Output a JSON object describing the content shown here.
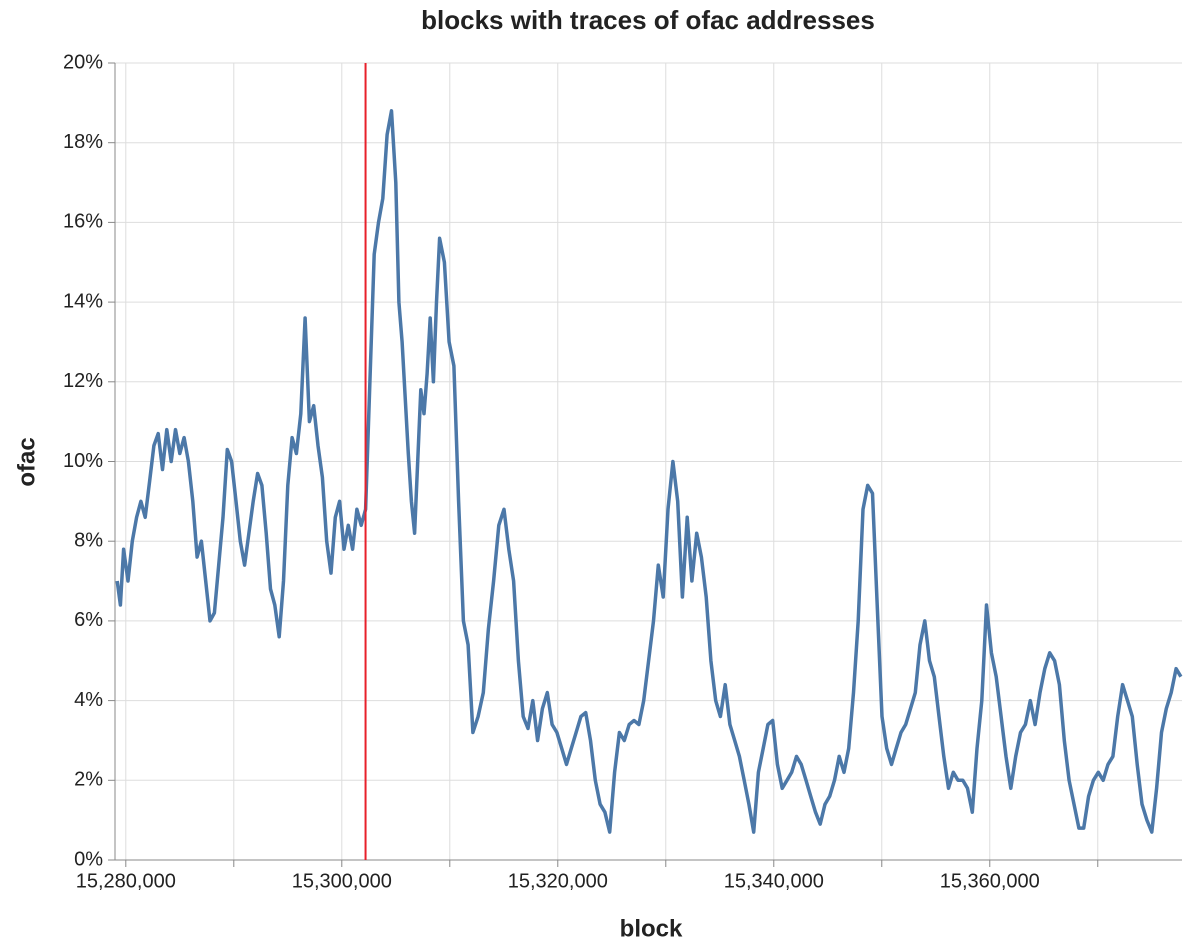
{
  "chart_data": {
    "type": "line",
    "title": "blocks with traces of ofac addresses",
    "x_label": "block",
    "y_label": "ofac",
    "color": "#4c78a8",
    "grid": true,
    "xlim": [
      15279000,
      15377800
    ],
    "ylim": [
      0,
      20
    ],
    "xticks": [
      {
        "value": 15280000,
        "label": "15,280,000"
      },
      {
        "value": 15290000,
        "label": null
      },
      {
        "value": 15300000,
        "label": "15,300,000"
      },
      {
        "value": 15310000,
        "label": null
      },
      {
        "value": 15320000,
        "label": "15,320,000"
      },
      {
        "value": 15330000,
        "label": null
      },
      {
        "value": 15340000,
        "label": "15,340,000"
      },
      {
        "value": 15350000,
        "label": null
      },
      {
        "value": 15360000,
        "label": "15,360,000"
      },
      {
        "value": 15370000,
        "label": null
      }
    ],
    "yticks": [
      {
        "value": 0,
        "label": "0%"
      },
      {
        "value": 2,
        "label": "2%"
      },
      {
        "value": 4,
        "label": "4%"
      },
      {
        "value": 6,
        "label": "6%"
      },
      {
        "value": 8,
        "label": "8%"
      },
      {
        "value": 10,
        "label": "10%"
      },
      {
        "value": 12,
        "label": "12%"
      },
      {
        "value": 14,
        "label": "14%"
      },
      {
        "value": 16,
        "label": "16%"
      },
      {
        "value": 18,
        "label": "18%"
      },
      {
        "value": 20,
        "label": "20%"
      }
    ],
    "vline": {
      "x": 15302200,
      "color": "#e8202a"
    },
    "x": [
      15279200,
      15279500,
      15279800,
      15280200,
      15280600,
      15281000,
      15281400,
      15281800,
      15282200,
      15282600,
      15283000,
      15283400,
      15283800,
      15284200,
      15284600,
      15285000,
      15285400,
      15285800,
      15286200,
      15286600,
      15287000,
      15287400,
      15287800,
      15288200,
      15288600,
      15289000,
      15289400,
      15289800,
      15290200,
      15290600,
      15291000,
      15291400,
      15291800,
      15292200,
      15292600,
      15293000,
      15293400,
      15293800,
      15294200,
      15294600,
      15295000,
      15295400,
      15295800,
      15296200,
      15296600,
      15297000,
      15297400,
      15297800,
      15298200,
      15298600,
      15299000,
      15299400,
      15299800,
      15300200,
      15300600,
      15301000,
      15301400,
      15301800,
      15302200,
      15302600,
      15303000,
      15303400,
      15303800,
      15304200,
      15304600,
      15305000,
      15305290,
      15305580,
      15305870,
      15306160,
      15306450,
      15306740,
      15307030,
      15307320,
      15307610,
      15307900,
      15308190,
      15308480,
      15308770,
      15309060,
      15309500,
      15309940,
      15310380,
      15310820,
      15311260,
      15311700,
      15312140,
      15312620,
      15313100,
      15313580,
      15314060,
      15314540,
      15315020,
      15315465,
      15315910,
      15316355,
      15316800,
      15317245,
      15317690,
      15318135,
      15318580,
      15319025,
      15319470,
      15319915,
      15320360,
      15320805,
      15321250,
      15321695,
      15322140,
      15322585,
      15323030,
      15323475,
      15323920,
      15324365,
      15324810,
      15325260,
      15325710,
      15326160,
      15326610,
      15327060,
      15327510,
      15327960,
      15328410,
      15328860,
      15329310,
      15329760,
      15330210,
      15330660,
      15331100,
      15331540,
      15331980,
      15332420,
      15332860,
      15333300,
      15333740,
      15334180,
      15334620,
      15335060,
      15335500,
      15335940,
      15336380,
      15336820,
      15337260,
      15337700,
      15338140,
      15338580,
      15339020,
      15339460,
      15339900,
      15340340,
      15340780,
      15341220,
      15341660,
      15342100,
      15342540,
      15342980,
      15343420,
      15343860,
      15344300,
      15344740,
      15345180,
      15345620,
      15346060,
      15346500,
      15346940,
      15347380,
      15347820,
      15348260,
      15348700,
      15349140,
      15349580,
      15350020,
      15350460,
      15350900,
      15351340,
      15351780,
      15352220,
      15352660,
      15353100,
      15353540,
      15353980,
      15354420,
      15354860,
      15355300,
      15355740,
      15356180,
      15356620,
      15357060,
      15357500,
      15357940,
      15358380,
      15358820,
      15359260,
      15359700,
      15360150,
      15360600,
      15361050,
      15361500,
      15361950,
      15362400,
      15362850,
      15363300,
      15363750,
      15364200,
      15364650,
      15365100,
      15365550,
      15366000,
      15366450,
      15366900,
      15367350,
      15367800,
      15368250,
      15368700,
      15369150,
      15369600,
      15370050,
      15370500,
      15370950,
      15371400,
      15371850,
      15372300,
      15372750,
      15373200,
      15373650,
      15374100,
      15374550,
      15375000,
      15375450,
      15375900,
      15376350,
      15376800,
      15377250,
      15377700
    ],
    "values": [
      7.0,
      6.4,
      7.8,
      7.0,
      8.0,
      8.6,
      9.0,
      8.6,
      9.5,
      10.4,
      10.7,
      9.8,
      10.8,
      10.0,
      10.8,
      10.2,
      10.6,
      10.0,
      9.0,
      7.6,
      8.0,
      7.0,
      6.0,
      6.2,
      7.4,
      8.6,
      10.3,
      10.0,
      9.0,
      8.0,
      7.4,
      8.2,
      9.0,
      9.7,
      9.4,
      8.2,
      6.8,
      6.4,
      5.6,
      7.0,
      9.4,
      10.6,
      10.2,
      11.2,
      13.6,
      11.0,
      11.4,
      10.4,
      9.6,
      8.0,
      7.2,
      8.6,
      9.0,
      7.8,
      8.4,
      7.8,
      8.8,
      8.4,
      8.8,
      12.0,
      15.2,
      16.0,
      16.6,
      18.2,
      18.8,
      17.0,
      14.0,
      13.0,
      11.6,
      10.2,
      9.0,
      8.2,
      10.0,
      11.8,
      11.2,
      12.2,
      13.6,
      12.0,
      14.0,
      15.6,
      15.0,
      13.0,
      12.4,
      9.0,
      6.0,
      5.4,
      3.2,
      3.6,
      4.2,
      5.8,
      7.0,
      8.4,
      8.8,
      7.8,
      7.0,
      5.0,
      3.6,
      3.3,
      4.0,
      3.0,
      3.8,
      4.2,
      3.4,
      3.2,
      2.8,
      2.4,
      2.8,
      3.2,
      3.6,
      3.7,
      3.0,
      2.0,
      1.4,
      1.2,
      0.7,
      2.2,
      3.2,
      3.0,
      3.4,
      3.5,
      3.4,
      4.0,
      5.0,
      6.0,
      7.4,
      6.6,
      8.8,
      10.0,
      9.0,
      6.6,
      8.6,
      7.0,
      8.2,
      7.6,
      6.6,
      5.0,
      4.0,
      3.6,
      4.4,
      3.4,
      3.0,
      2.6,
      2.0,
      1.4,
      0.7,
      2.2,
      2.8,
      3.4,
      3.5,
      2.4,
      1.8,
      2.0,
      2.2,
      2.6,
      2.4,
      2.0,
      1.6,
      1.2,
      0.9,
      1.4,
      1.6,
      2.0,
      2.6,
      2.2,
      2.8,
      4.2,
      6.0,
      8.8,
      9.4,
      9.2,
      6.4,
      3.6,
      2.8,
      2.4,
      2.8,
      3.2,
      3.4,
      3.8,
      4.2,
      5.4,
      6.0,
      5.0,
      4.6,
      3.6,
      2.6,
      1.8,
      2.2,
      2.0,
      2.0,
      1.8,
      1.2,
      2.8,
      4.0,
      6.4,
      5.2,
      4.6,
      3.6,
      2.6,
      1.8,
      2.6,
      3.2,
      3.4,
      4.0,
      3.4,
      4.2,
      4.8,
      5.2,
      5.0,
      4.4,
      3.0,
      2.0,
      1.4,
      0.8,
      0.8,
      1.6,
      2.0,
      2.2,
      2.0,
      2.4,
      2.6,
      3.6,
      4.4,
      4.0,
      3.6,
      2.4,
      1.4,
      1.0,
      0.7,
      1.8,
      3.2,
      3.8,
      4.2,
      4.8,
      4.6
    ]
  }
}
